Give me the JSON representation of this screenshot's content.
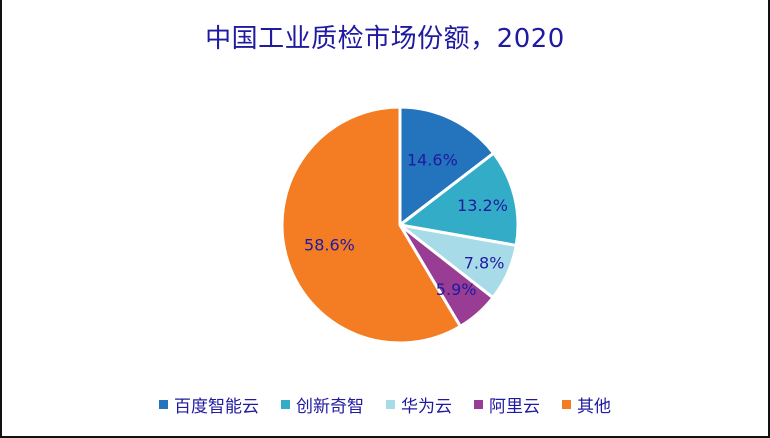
{
  "chart_data": {
    "type": "pie",
    "title": "中国工业质检市场份额，2020",
    "categories": [
      "百度智能云",
      "创新奇智",
      "华为云",
      "阿里云",
      "其他"
    ],
    "values": [
      14.6,
      13.2,
      7.8,
      5.9,
      58.6
    ],
    "labels": [
      "14.6%",
      "13.2%",
      "7.8%",
      "5.9%",
      "58.6%"
    ],
    "colors": [
      "#2474bd",
      "#33acc8",
      "#a7dbe8",
      "#983c94",
      "#f47c22"
    ],
    "start_angle_deg": -90,
    "direction": "clockwise",
    "legend_position": "bottom"
  },
  "title": "中国工业质检市场份额，2020",
  "legend": [
    {
      "label": "百度智能云",
      "color": "#2474bd"
    },
    {
      "label": "创新奇智",
      "color": "#33acc8"
    },
    {
      "label": "华为云",
      "color": "#a7dbe8"
    },
    {
      "label": "阿里云",
      "color": "#983c94"
    },
    {
      "label": "其他",
      "color": "#f47c22"
    }
  ],
  "colors": {
    "title": "#1f1aa0",
    "label": "#1f1aa0",
    "slice_border": "#ffffff"
  }
}
